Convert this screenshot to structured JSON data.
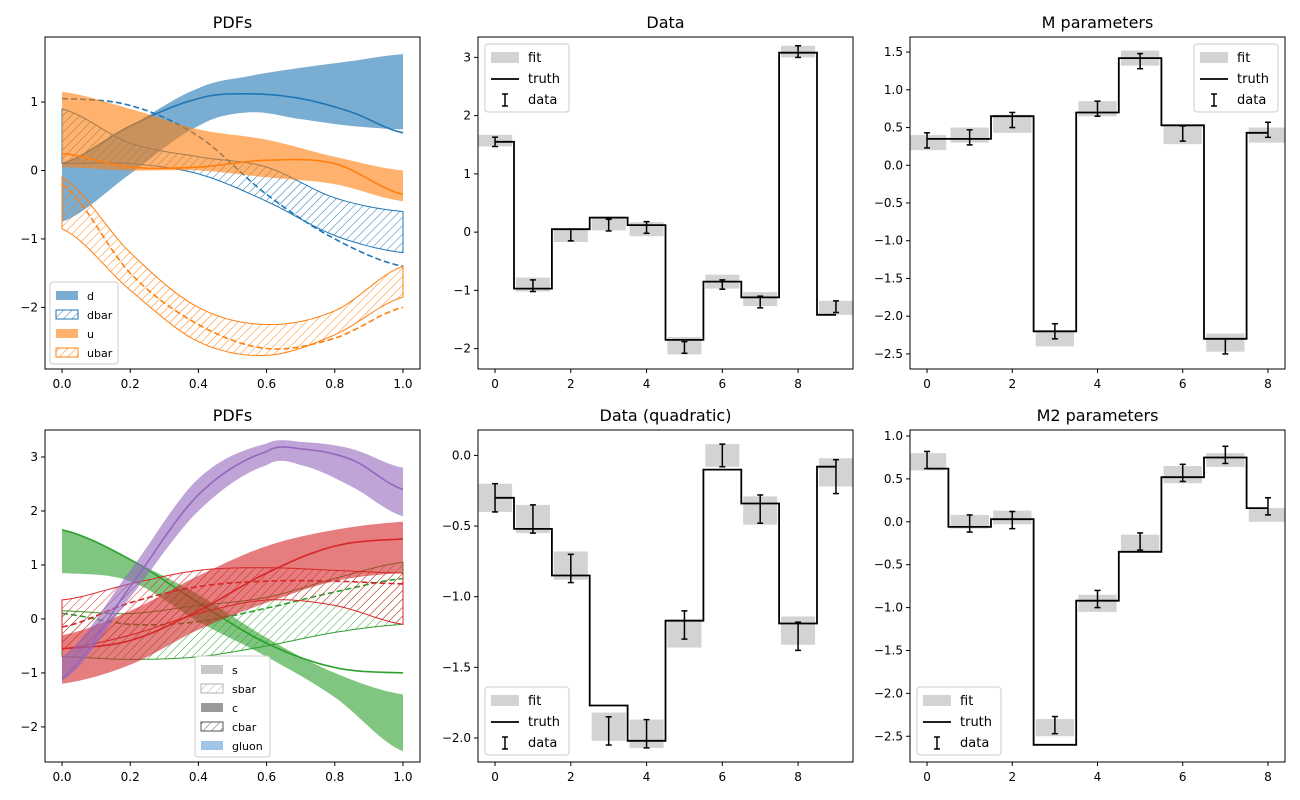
{
  "chart_data": [
    {
      "type": "area",
      "title": "PDFs",
      "xlim": [
        -0.05,
        1.05
      ],
      "ylim": [
        -2.9,
        1.95
      ],
      "xticks": [
        "0.0",
        "0.2",
        "0.4",
        "0.6",
        "0.8",
        "1.0"
      ],
      "yticks": [
        "1",
        "0",
        "−1",
        "−2"
      ],
      "ytick_values": [
        1,
        0,
        -1,
        -2
      ],
      "xtick_values": [
        0,
        0.2,
        0.4,
        0.6,
        0.8,
        1.0
      ],
      "legend": [
        "d",
        "dbar",
        "u",
        "ubar"
      ],
      "legend_position": "lower-left",
      "series": [
        {
          "name": "d",
          "color": "#1f77b4",
          "x": [
            0,
            0.2,
            0.4,
            0.55,
            0.7,
            0.85,
            1.0
          ],
          "truth": [
            0.1,
            0.65,
            1.05,
            1.12,
            1.05,
            0.85,
            0.55
          ],
          "lower": [
            -0.75,
            -0.05,
            0.65,
            0.85,
            0.75,
            0.65,
            0.6
          ],
          "upper": [
            0.1,
            0.65,
            1.2,
            1.38,
            1.5,
            1.6,
            1.7
          ]
        },
        {
          "name": "dbar",
          "color": "#1f77b4",
          "hatched": true,
          "x": [
            0,
            0.2,
            0.4,
            0.6,
            0.8,
            1.0
          ],
          "truth": [
            1.05,
            0.95,
            0.5,
            -0.35,
            -1.0,
            -1.4
          ],
          "lower": [
            0.1,
            0.1,
            -0.05,
            -0.45,
            -0.95,
            -1.2
          ],
          "upper": [
            0.9,
            0.4,
            0.2,
            0.05,
            -0.4,
            -0.6
          ]
        },
        {
          "name": "u",
          "color": "#ff7f0e",
          "x": [
            0,
            0.2,
            0.4,
            0.6,
            0.8,
            1.0
          ],
          "truth": [
            0.25,
            0.05,
            0.05,
            0.15,
            0.1,
            -0.35
          ],
          "lower": [
            0.05,
            0.0,
            0.0,
            -0.1,
            -0.2,
            -0.45
          ],
          "upper": [
            1.15,
            0.9,
            0.6,
            0.45,
            0.2,
            0.0
          ]
        },
        {
          "name": "ubar",
          "color": "#ff7f0e",
          "hatched": true,
          "x": [
            0,
            0.2,
            0.4,
            0.6,
            0.8,
            1.0
          ],
          "truth": [
            -0.2,
            -1.5,
            -2.25,
            -2.6,
            -2.45,
            -2.0
          ],
          "lower": [
            -0.85,
            -1.75,
            -2.5,
            -2.7,
            -2.4,
            -1.85
          ],
          "upper": [
            -0.1,
            -1.2,
            -2.0,
            -2.25,
            -2.05,
            -1.4
          ]
        }
      ]
    },
    {
      "type": "step",
      "title": "Data",
      "xlim": [
        -0.45,
        9.45
      ],
      "ylim": [
        -2.35,
        3.35
      ],
      "xticks": [
        "0",
        "2",
        "4",
        "6",
        "8"
      ],
      "xtick_values": [
        0,
        2,
        4,
        6,
        8
      ],
      "yticks": [
        "3",
        "2",
        "1",
        "0",
        "−1",
        "−2"
      ],
      "ytick_values": [
        3,
        2,
        1,
        0,
        -1,
        -2
      ],
      "legend": [
        "fit",
        "truth",
        "data"
      ],
      "legend_position": "top-left",
      "truth": [
        1.55,
        -0.97,
        0.05,
        0.25,
        0.12,
        -1.85,
        -0.85,
        -1.12,
        3.08,
        -1.42
      ],
      "fit": [
        1.57,
        -0.9,
        -0.05,
        0.15,
        0.05,
        -1.95,
        -0.85,
        -1.15,
        3.1,
        -1.3
      ],
      "fit_err": [
        0.1,
        0.12,
        0.12,
        0.12,
        0.12,
        0.15,
        0.12,
        0.12,
        0.1,
        0.12
      ],
      "data": [
        1.55,
        -0.92,
        -0.05,
        0.12,
        0.08,
        -1.98,
        -0.9,
        -1.2,
        3.1,
        -1.28
      ],
      "data_err": [
        0.08,
        0.1,
        0.1,
        0.1,
        0.1,
        0.1,
        0.08,
        0.1,
        0.1,
        0.1
      ]
    },
    {
      "type": "step",
      "title": "M parameters",
      "xlim": [
        -0.4,
        8.4
      ],
      "ylim": [
        -2.7,
        1.7
      ],
      "xticks": [
        "0",
        "2",
        "4",
        "6",
        "8"
      ],
      "xtick_values": [
        0,
        2,
        4,
        6,
        8
      ],
      "yticks": [
        "1.5",
        "1.0",
        "0.5",
        "0.0",
        "−0.5",
        "−1.0",
        "−1.5",
        "−2.0",
        "−2.5"
      ],
      "ytick_values": [
        1.5,
        1.0,
        0.5,
        0.0,
        -0.5,
        -1.0,
        -1.5,
        -2.0,
        -2.5
      ],
      "legend": [
        "fit",
        "truth",
        "data"
      ],
      "legend_position": "top-right",
      "truth": [
        0.35,
        0.35,
        0.65,
        -2.2,
        0.7,
        1.42,
        0.53,
        -2.3,
        0.43
      ],
      "fit": [
        0.3,
        0.4,
        0.55,
        -2.3,
        0.75,
        1.42,
        0.4,
        -2.35,
        0.4
      ],
      "fit_err": [
        0.1,
        0.1,
        0.12,
        0.1,
        0.1,
        0.1,
        0.12,
        0.12,
        0.1
      ],
      "data": [
        0.33,
        0.37,
        0.6,
        -2.2,
        0.75,
        1.38,
        0.42,
        -2.4,
        0.47
      ],
      "data_err": [
        0.1,
        0.1,
        0.1,
        0.1,
        0.1,
        0.1,
        0.1,
        0.1,
        0.1
      ]
    },
    {
      "type": "area",
      "title": "PDFs",
      "xlim": [
        -0.05,
        1.05
      ],
      "ylim": [
        -2.65,
        3.5
      ],
      "xticks": [
        "0.0",
        "0.2",
        "0.4",
        "0.6",
        "0.8",
        "1.0"
      ],
      "xtick_values": [
        0,
        0.2,
        0.4,
        0.6,
        0.8,
        1.0
      ],
      "yticks": [
        "3",
        "2",
        "1",
        "0",
        "−1",
        "−2"
      ],
      "ytick_values": [
        3,
        2,
        1,
        0,
        -1,
        -2
      ],
      "legend": [
        "s",
        "sbar",
        "c",
        "cbar",
        "gluon"
      ],
      "legend_position": "lower-center",
      "series": [
        {
          "name": "s",
          "color": "#2ca02c",
          "x": [
            0,
            0.2,
            0.4,
            0.6,
            0.8,
            1.0
          ],
          "truth": [
            1.65,
            1.1,
            0.3,
            -0.45,
            -0.9,
            -1.0
          ],
          "lower": [
            0.85,
            0.7,
            -0.05,
            -0.7,
            -1.45,
            -2.45
          ],
          "upper": [
            1.65,
            1.1,
            0.45,
            -0.35,
            -1.0,
            -1.4
          ]
        },
        {
          "name": "sbar",
          "color": "#2ca02c",
          "hatched": true,
          "x": [
            0,
            0.2,
            0.4,
            0.6,
            0.8,
            1.0
          ],
          "truth": [
            0.1,
            -0.1,
            -0.05,
            0.2,
            0.5,
            0.75
          ],
          "lower": [
            -0.7,
            -0.75,
            -0.7,
            -0.5,
            -0.25,
            -0.1
          ],
          "upper": [
            0.15,
            0.1,
            0.25,
            0.4,
            0.75,
            1.05
          ]
        },
        {
          "name": "c",
          "color": "#d62728",
          "x": [
            0,
            0.2,
            0.4,
            0.6,
            0.8,
            1.0
          ],
          "truth": [
            -0.55,
            -0.4,
            0.15,
            0.85,
            1.35,
            1.48
          ],
          "lower": [
            -1.2,
            -0.85,
            -0.2,
            0.3,
            0.7,
            0.85
          ],
          "upper": [
            -0.3,
            0.15,
            0.8,
            1.35,
            1.65,
            1.8
          ]
        },
        {
          "name": "cbar",
          "color": "#d62728",
          "hatched": true,
          "x": [
            0,
            0.2,
            0.4,
            0.6,
            0.8,
            1.0
          ],
          "truth": [
            -0.15,
            0.3,
            0.6,
            0.7,
            0.7,
            0.65
          ],
          "lower": [
            -0.55,
            -0.3,
            0.1,
            0.35,
            0.25,
            -0.1
          ],
          "upper": [
            0.35,
            0.65,
            0.9,
            0.95,
            0.9,
            0.85
          ]
        },
        {
          "name": "gluon",
          "color": "#9467bd",
          "x": [
            0,
            0.2,
            0.4,
            0.6,
            0.7,
            0.85,
            1.0
          ],
          "truth": [
            -1.1,
            0.6,
            2.3,
            3.1,
            3.15,
            2.95,
            2.4
          ],
          "lower": [
            -1.15,
            0.4,
            2.0,
            2.85,
            2.85,
            2.45,
            1.9
          ],
          "upper": [
            -0.7,
            0.9,
            2.6,
            3.25,
            3.28,
            3.15,
            2.8
          ]
        }
      ]
    },
    {
      "type": "step",
      "title": "Data (quadratic)",
      "xlim": [
        -0.45,
        9.45
      ],
      "ylim": [
        -2.17,
        0.18
      ],
      "xticks": [
        "0",
        "2",
        "4",
        "6",
        "8"
      ],
      "xtick_values": [
        0,
        2,
        4,
        6,
        8
      ],
      "yticks": [
        "0.0",
        "−0.5",
        "−1.0",
        "−1.5",
        "−2.0"
      ],
      "ytick_values": [
        0.0,
        -0.5,
        -1.0,
        -1.5,
        -2.0
      ],
      "legend": [
        "fit",
        "truth",
        "data"
      ],
      "legend_position": "bottom-left",
      "truth": [
        -0.3,
        -0.52,
        -0.85,
        -1.77,
        -2.02,
        -1.17,
        -0.1,
        -0.34,
        -1.19,
        -0.08
      ],
      "fit": [
        -0.3,
        -0.45,
        -0.78,
        -1.92,
        -1.97,
        -1.26,
        0.0,
        -0.39,
        -1.24,
        -0.12
      ],
      "fit_err": [
        0.1,
        0.1,
        0.1,
        0.1,
        0.1,
        0.1,
        0.08,
        0.1,
        0.1,
        0.1
      ],
      "data": [
        -0.3,
        -0.45,
        -0.8,
        -1.95,
        -1.97,
        -1.2,
        0.0,
        -0.38,
        -1.28,
        -0.15
      ],
      "data_err": [
        0.1,
        0.1,
        0.1,
        0.1,
        0.1,
        0.1,
        0.08,
        0.1,
        0.1,
        0.12
      ]
    },
    {
      "type": "step",
      "title": "M2 parameters",
      "xlim": [
        -0.4,
        8.4
      ],
      "ylim": [
        -2.8,
        1.07
      ],
      "xticks": [
        "0",
        "2",
        "4",
        "6",
        "8"
      ],
      "xtick_values": [
        0,
        2,
        4,
        6,
        8
      ],
      "yticks": [
        "1.0",
        "0.5",
        "0.0",
        "−0.5",
        "−1.0",
        "−1.5",
        "−2.0",
        "−2.5"
      ],
      "ytick_values": [
        1.0,
        0.5,
        0.0,
        -0.5,
        -1.0,
        -1.5,
        -2.0,
        -2.5
      ],
      "legend": [
        "fit",
        "truth",
        "data"
      ],
      "legend_position": "bottom-left",
      "truth": [
        0.62,
        -0.06,
        0.03,
        -2.6,
        -0.92,
        -0.35,
        0.52,
        0.75,
        0.16
      ],
      "fit": [
        0.7,
        0.0,
        0.05,
        -2.4,
        -0.95,
        -0.25,
        0.55,
        0.72,
        0.08
      ],
      "fit_err": [
        0.1,
        0.08,
        0.08,
        0.1,
        0.1,
        0.1,
        0.1,
        0.08,
        0.08
      ],
      "data": [
        0.72,
        -0.02,
        0.02,
        -2.37,
        -0.9,
        -0.23,
        0.57,
        0.78,
        0.18
      ],
      "data_err": [
        0.1,
        0.1,
        0.1,
        0.1,
        0.1,
        0.1,
        0.1,
        0.1,
        0.1
      ]
    }
  ]
}
